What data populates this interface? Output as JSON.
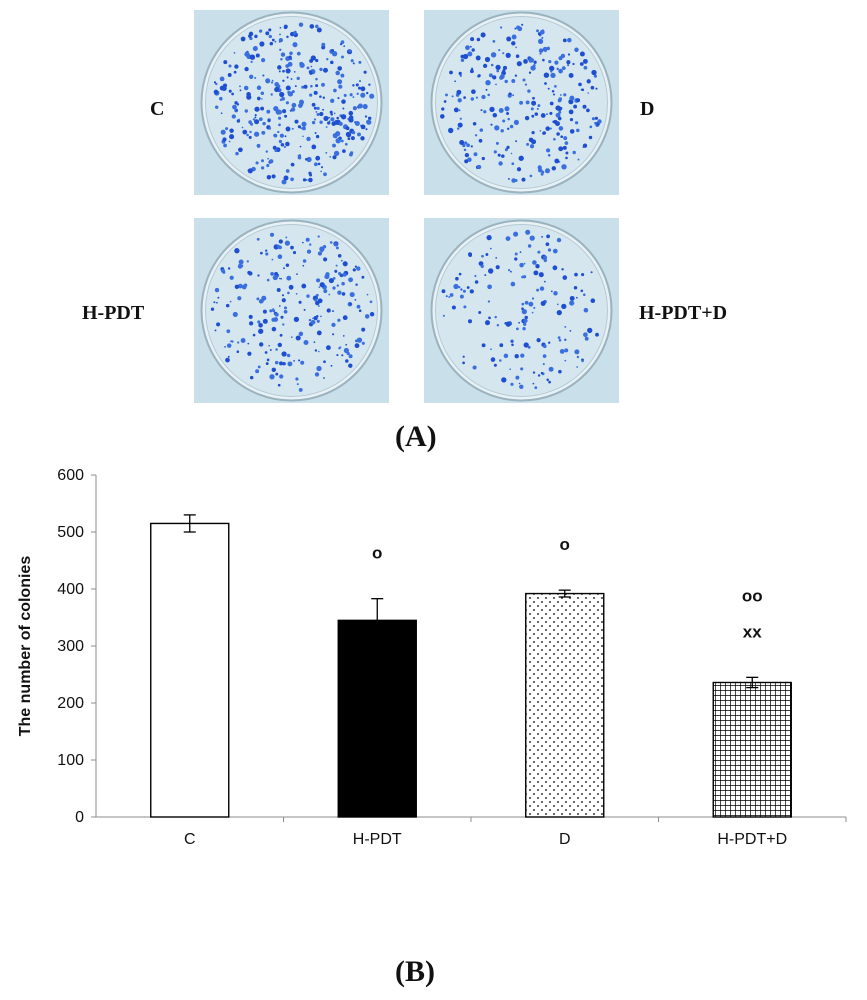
{
  "panel_a": {
    "plates": [
      {
        "label": "C",
        "density": 1.0
      },
      {
        "label": "D",
        "density": 0.76
      },
      {
        "label": "H-PDT",
        "density": 0.67
      },
      {
        "label": "H-PDT+D",
        "density": 0.46
      }
    ],
    "caption_open": "(",
    "caption_letter": "A",
    "caption_close": ")"
  },
  "panel_b": {
    "caption_open": "(",
    "caption_letter": "B",
    "caption_close": ")"
  },
  "chart_data": {
    "type": "bar",
    "categories": [
      "C",
      "H-PDT",
      "D",
      "H-PDT+D"
    ],
    "values": [
      515,
      345,
      392,
      236
    ],
    "errors": [
      15,
      38,
      6,
      9
    ],
    "fills": [
      "white",
      "black",
      "dots",
      "grid"
    ],
    "annotations": [
      {
        "category": "H-PDT",
        "lines": [
          "o"
        ]
      },
      {
        "category": "D",
        "lines": [
          "o"
        ]
      },
      {
        "category": "H-PDT+D",
        "lines": [
          "oo",
          "xx"
        ]
      }
    ],
    "ylabel": "The number of colonies",
    "xlabel": "",
    "ylim": [
      0,
      600
    ],
    "yticks": [
      0,
      100,
      200,
      300,
      400,
      500,
      600
    ],
    "grid": false
  }
}
